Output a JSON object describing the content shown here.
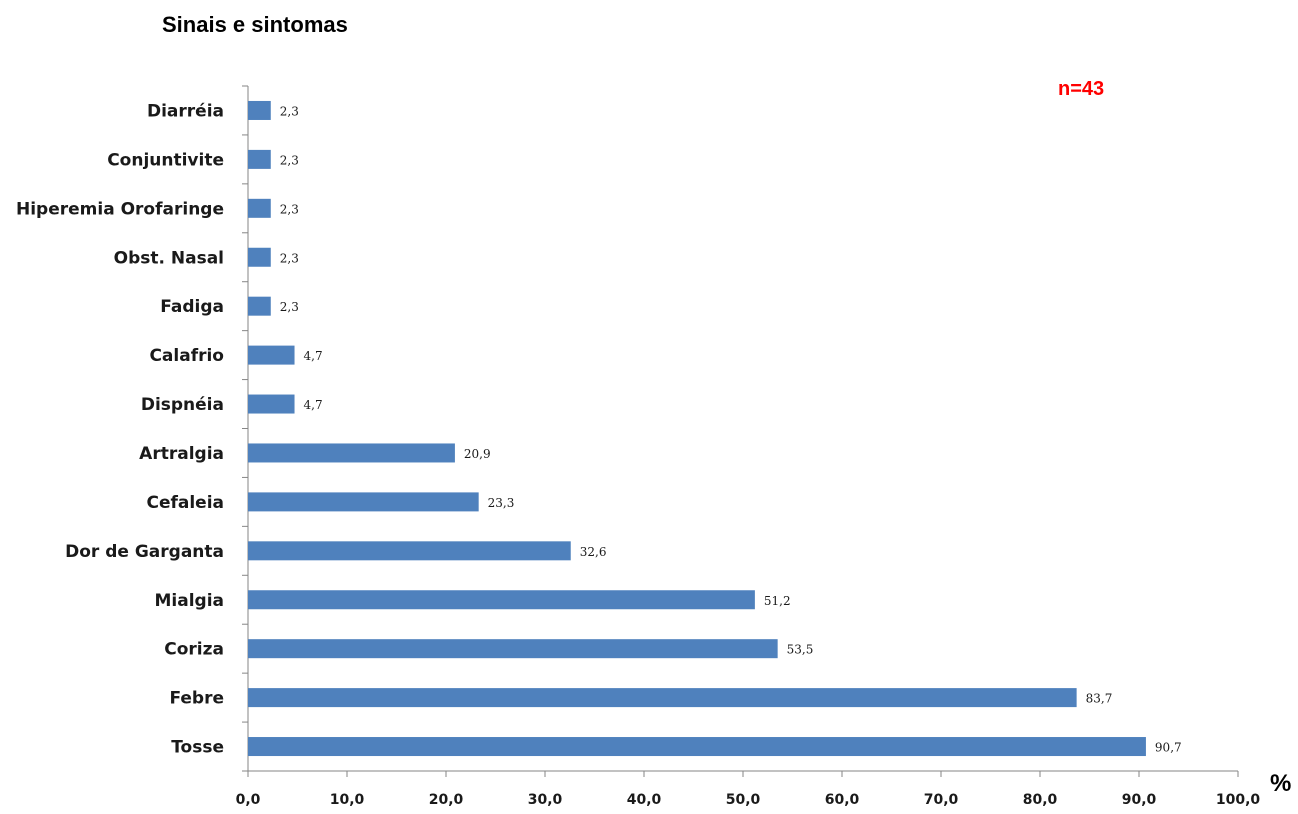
{
  "chart_data": {
    "type": "bar",
    "orientation": "horizontal",
    "title": "Sinais e sintomas",
    "annotation": "n=43",
    "xlabel": "%",
    "categories": [
      "Tosse",
      "Febre",
      "Coriza",
      "Mialgia",
      "Dor de Garganta",
      "Cefaleia",
      "Artralgia",
      "Dispnéia",
      "Calafrio",
      "Fadiga",
      "Obst. Nasal",
      "Hiperemia Orofaringe",
      "Conjuntivite",
      "Diarréia"
    ],
    "values": [
      90.7,
      83.7,
      53.5,
      51.2,
      32.6,
      23.3,
      20.9,
      4.7,
      4.7,
      2.3,
      2.3,
      2.3,
      2.3,
      2.3
    ],
    "data_labels": [
      "90,7",
      "83,7",
      "53,5",
      "51,2",
      "32,6",
      "23,3",
      "20,9",
      "4,7",
      "4,7",
      "2,3",
      "2,3",
      "2,3",
      "2,3",
      "2,3"
    ],
    "xlim": [
      0,
      100
    ],
    "xticks": [
      0,
      10,
      20,
      30,
      40,
      50,
      60,
      70,
      80,
      90,
      100
    ],
    "xtick_labels": [
      "0,0",
      "10,0",
      "20,0",
      "30,0",
      "40,0",
      "50,0",
      "60,0",
      "70,0",
      "80,0",
      "90,0",
      "100,0"
    ],
    "grid": false,
    "legend": "none",
    "colors": {
      "bar": "#4f81bd",
      "annotation": "#ff0000",
      "axis": "#868686"
    }
  }
}
